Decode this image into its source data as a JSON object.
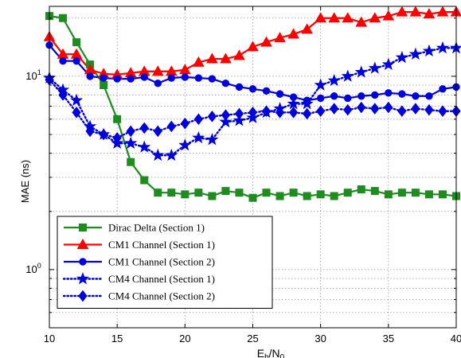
{
  "chart_data": {
    "type": "line",
    "xlabel": "E",
    "xlabel_sub1": "b",
    "xlabel_mid": "/N",
    "xlabel_sub2": "0",
    "ylabel": "MAE (ns)",
    "xlim": [
      10,
      40
    ],
    "ylim": [
      0.5,
      23
    ],
    "yscale": "log",
    "grid": true,
    "legend_position": "bottom-left",
    "x_ticks": [
      10,
      15,
      20,
      25,
      30,
      35,
      40
    ],
    "y_ticks": [
      {
        "value": 1,
        "base": "10",
        "exp": "0"
      },
      {
        "value": 10,
        "base": "10",
        "exp": "1"
      }
    ],
    "x": [
      10,
      11,
      12,
      13,
      14,
      15,
      16,
      17,
      18,
      19,
      20,
      21,
      22,
      23,
      24,
      25,
      26,
      27,
      28,
      29,
      30,
      31,
      32,
      33,
      34,
      35,
      36,
      37,
      38,
      39,
      40
    ],
    "series": [
      {
        "name": "Dirac Delta (Section 1)",
        "color": "#1f8c1f",
        "line": "solid",
        "marker": "square",
        "values": [
          20.5,
          20.0,
          15.0,
          11.5,
          9.0,
          6.0,
          3.6,
          2.9,
          2.5,
          2.5,
          2.45,
          2.5,
          2.4,
          2.55,
          2.5,
          2.35,
          2.5,
          2.4,
          2.5,
          2.4,
          2.45,
          2.4,
          2.5,
          2.6,
          2.55,
          2.45,
          2.5,
          2.5,
          2.45,
          2.45,
          2.4
        ]
      },
      {
        "name": "CM1 Channel (Section 1)",
        "color": "#ff0000",
        "line": "solid",
        "marker": "triangle",
        "values": [
          16.0,
          13.0,
          13.0,
          10.8,
          10.3,
          10.2,
          10.4,
          10.6,
          10.6,
          10.6,
          10.8,
          11.8,
          12.3,
          12.3,
          12.8,
          14.2,
          15.0,
          15.8,
          16.5,
          17.5,
          20.0,
          20.0,
          20.0,
          19.0,
          20.0,
          20.5,
          21.5,
          21.5,
          21.0,
          21.5,
          21.5
        ]
      },
      {
        "name": "CM1 Channel (Section 2)",
        "color": "#0000dd",
        "line": "solid",
        "marker": "circle",
        "values": [
          14.5,
          12.0,
          12.0,
          10.0,
          9.8,
          9.7,
          9.7,
          9.9,
          9.2,
          9.8,
          9.9,
          9.8,
          9.7,
          9.2,
          8.8,
          8.6,
          8.4,
          8.1,
          7.8,
          7.5,
          7.7,
          7.9,
          7.7,
          7.9,
          8.0,
          8.2,
          8.1,
          7.9,
          7.9,
          8.6,
          8.8
        ]
      },
      {
        "name": "CM4 Channel (Section 1)",
        "color": "#0000dd",
        "line": "dotted",
        "marker": "star",
        "values": [
          9.8,
          8.5,
          7.5,
          5.5,
          5.0,
          4.5,
          4.5,
          4.3,
          3.9,
          3.9,
          4.4,
          4.8,
          4.7,
          5.8,
          5.9,
          6.1,
          6.5,
          6.8,
          7.2,
          7.2,
          9.0,
          9.5,
          10.0,
          10.5,
          11.0,
          11.5,
          12.5,
          13.0,
          13.5,
          14.0,
          14.0
        ]
      },
      {
        "name": "CM4 Channel (Section 2)",
        "color": "#0000dd",
        "line": "dotted",
        "marker": "diamond",
        "values": [
          9.6,
          8.0,
          6.5,
          5.2,
          5.0,
          4.8,
          5.2,
          5.4,
          5.2,
          5.5,
          5.7,
          6.0,
          6.2,
          6.3,
          6.4,
          6.5,
          6.6,
          6.5,
          6.5,
          6.4,
          6.6,
          6.8,
          6.7,
          6.9,
          6.8,
          6.9,
          6.6,
          6.8,
          6.7,
          6.6,
          6.6
        ]
      }
    ]
  }
}
